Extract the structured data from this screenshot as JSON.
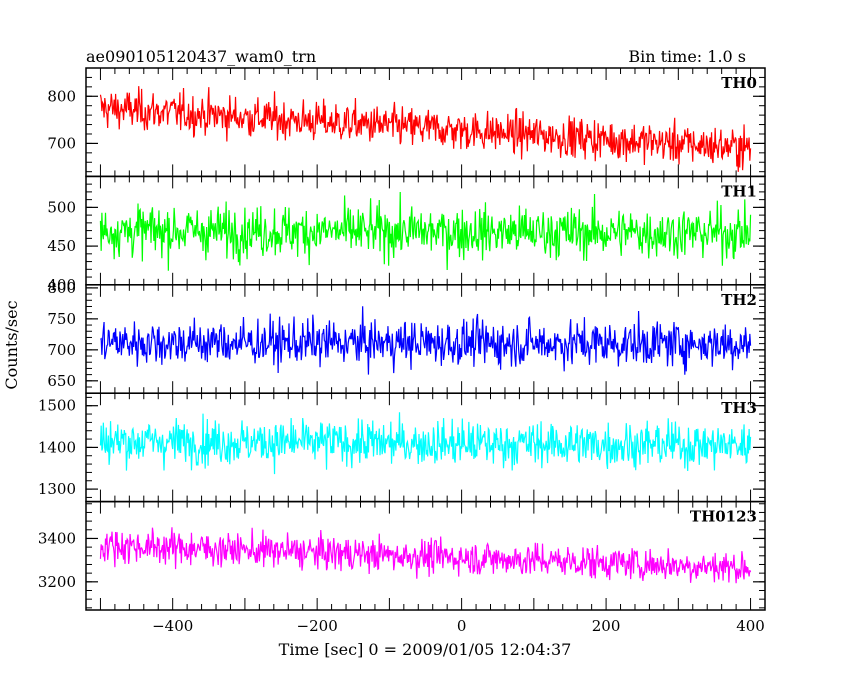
{
  "header": {
    "title": "ae090105120437_wam0_trn",
    "bin_time": "Bin time: 1.0 s"
  },
  "axes": {
    "ylabel": "Counts/sec",
    "xlabel": "Time [sec] 0 = 2009/01/05 12:04:37"
  },
  "chart_data": {
    "type": "line",
    "title": "ae090105120437_wam0_trn",
    "xlabel": "Time [sec] 0 = 2009/01/05 12:04:37",
    "ylabel": "Counts/sec",
    "xlim": [
      -520,
      420
    ],
    "x_ticks": [
      -400,
      -200,
      0,
      200,
      400
    ],
    "x_range": [
      -500,
      400
    ],
    "bin_time_s": 1.0,
    "grid": false,
    "panels": [
      {
        "name": "TH0",
        "color": "#ff0000",
        "ylim": [
          630,
          860
        ],
        "y_ticks": [
          700,
          800
        ],
        "trend_start": 775,
        "trend_end": 690,
        "noise": 30
      },
      {
        "name": "TH1",
        "color": "#00ff00",
        "ylim": [
          400,
          540
        ],
        "y_ticks": [
          400,
          450,
          500
        ],
        "trend_start": 470,
        "trend_end": 467,
        "noise": 23
      },
      {
        "name": "TH2",
        "color": "#0000ff",
        "ylim": [
          630,
          805
        ],
        "y_ticks": [
          650,
          700,
          750,
          800
        ],
        "trend_start": 712,
        "trend_end": 710,
        "noise": 26
      },
      {
        "name": "TH3",
        "color": "#00ffff",
        "ylim": [
          1270,
          1530
        ],
        "y_ticks": [
          1300,
          1400,
          1500
        ],
        "trend_start": 1415,
        "trend_end": 1405,
        "noise": 38
      },
      {
        "name": "TH0123",
        "color": "#ff00ff",
        "ylim": [
          3070,
          3570
        ],
        "y_ticks": [
          3200,
          3400
        ],
        "trend_start": 3370,
        "trend_end": 3265,
        "noise": 55
      }
    ]
  }
}
